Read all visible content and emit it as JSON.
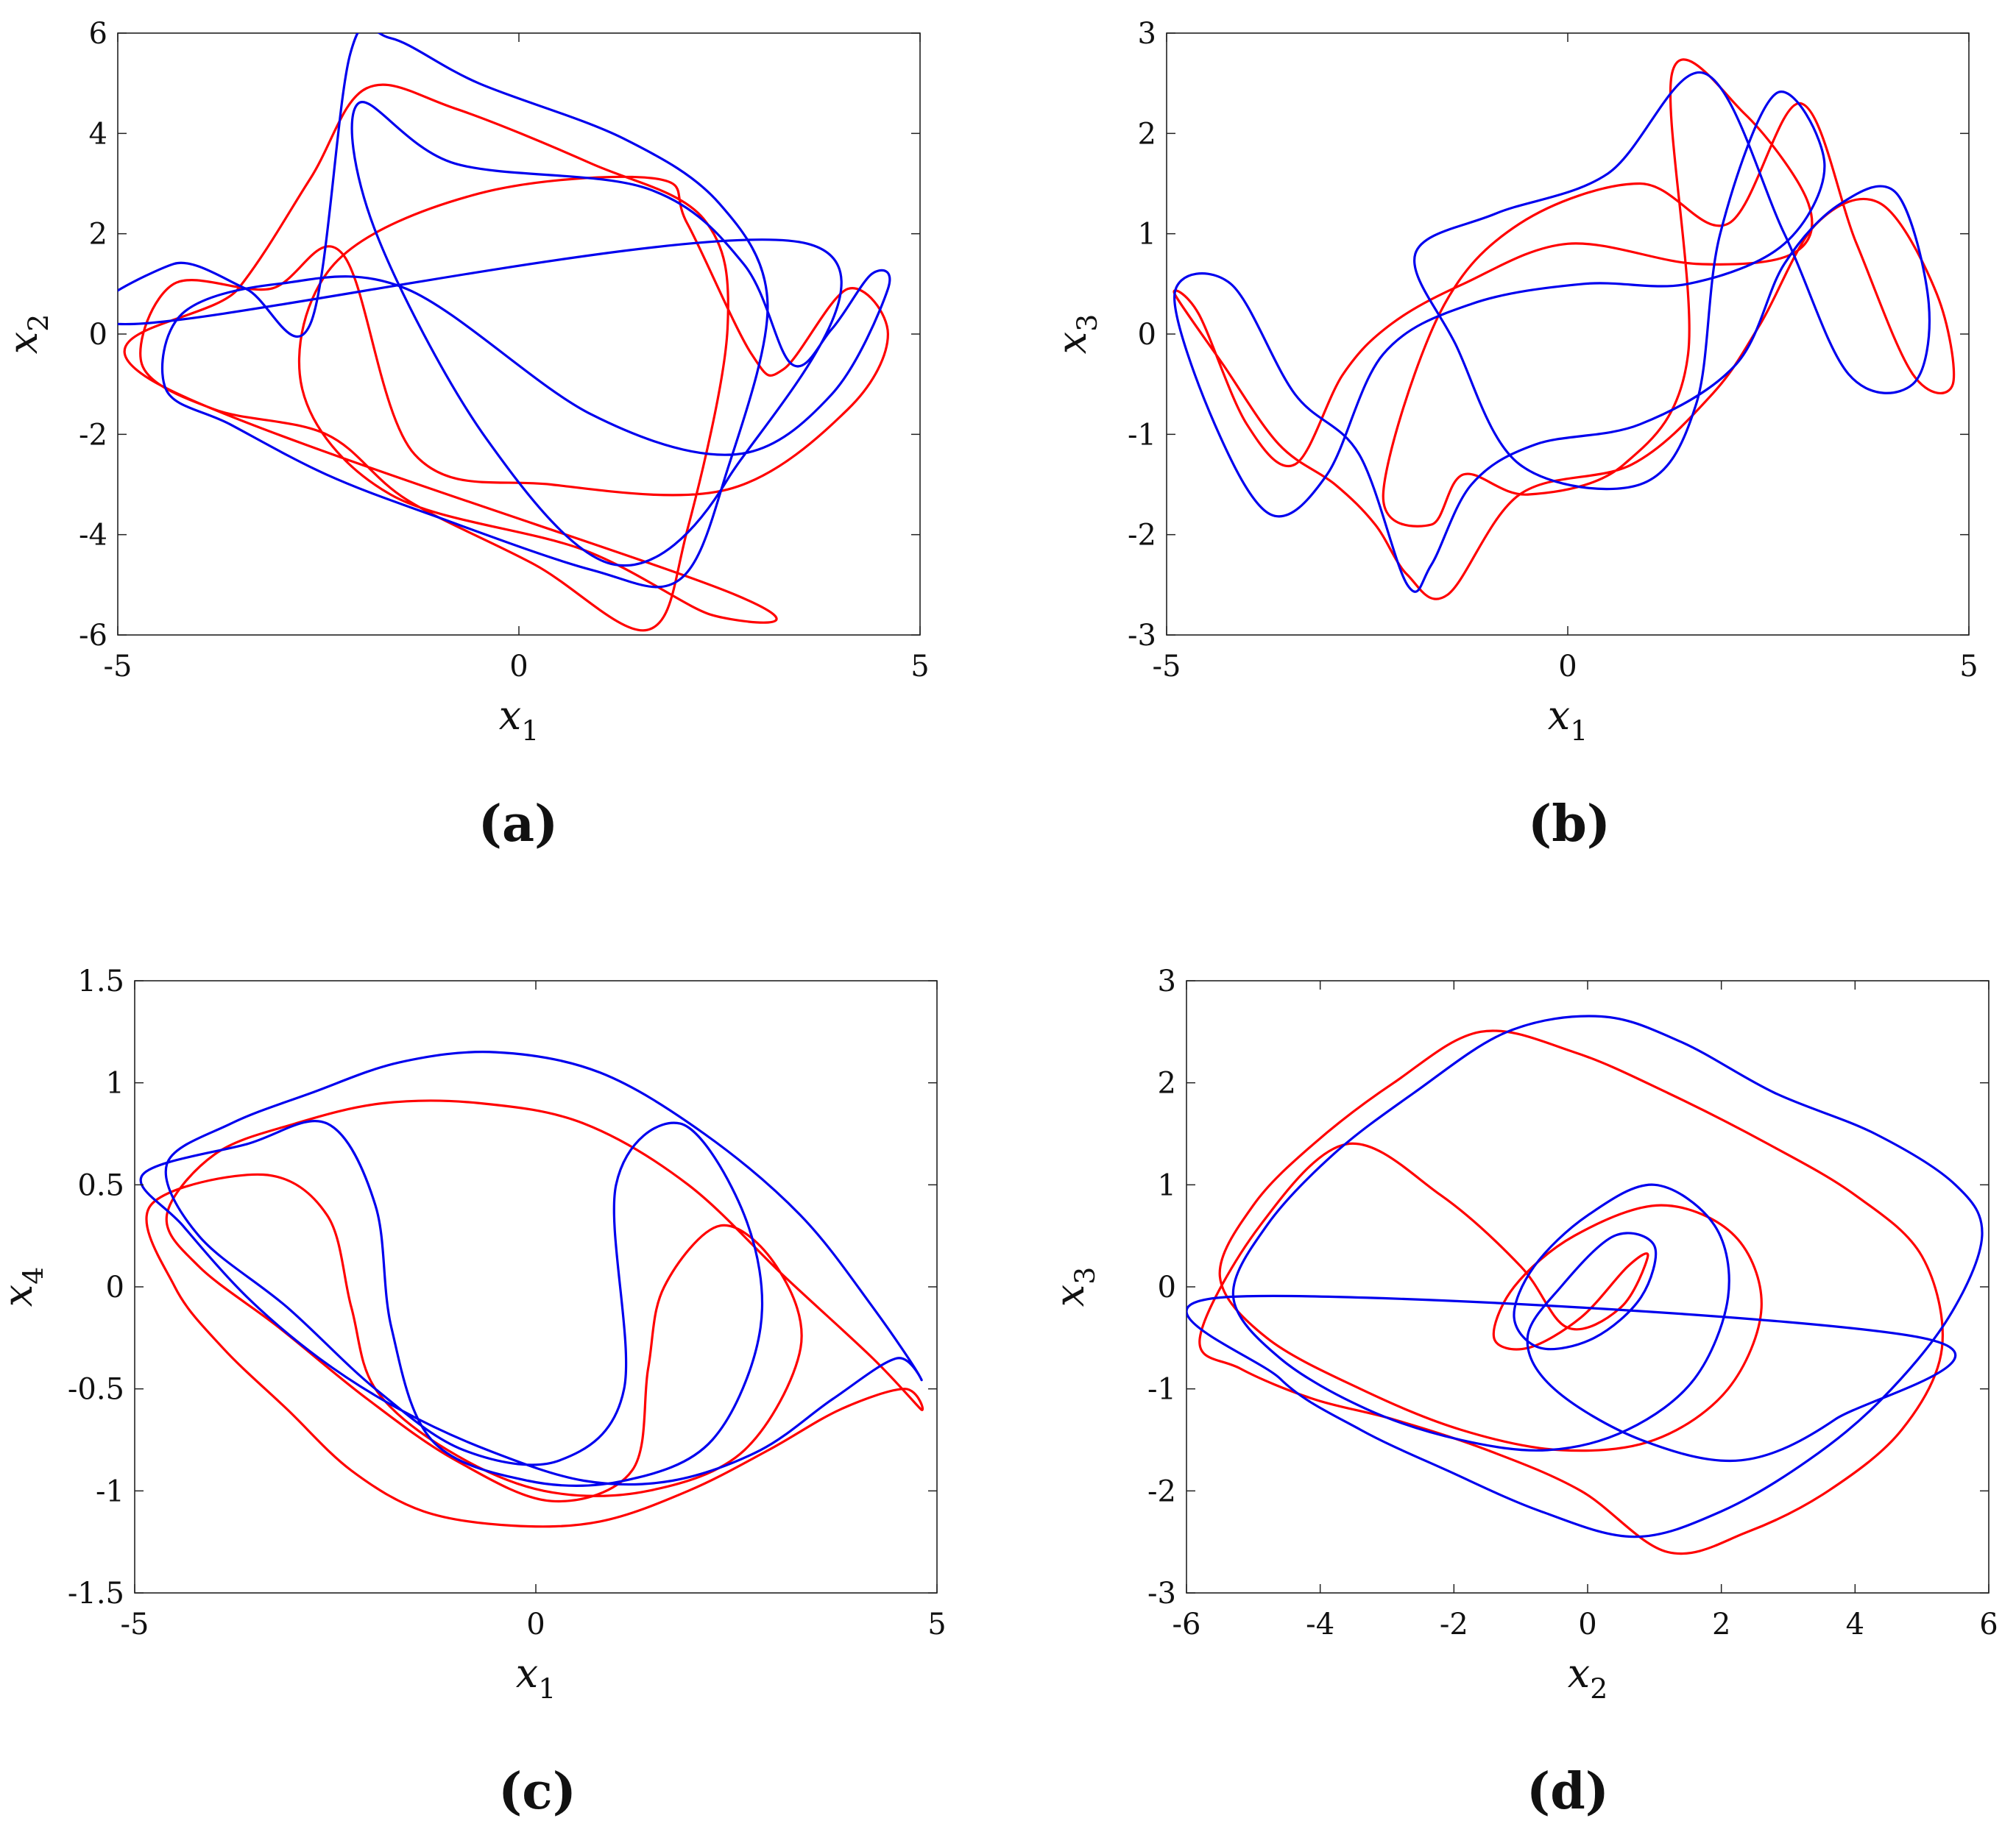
{
  "colors": {
    "series_red": "#ff0000",
    "series_blue": "#0000ee",
    "axes": "#222222"
  },
  "chart_data": [
    {
      "type": "line",
      "panel": "(a)",
      "xlabel": "x1",
      "ylabel": "x2",
      "xlim": [
        -5,
        5
      ],
      "ylim": [
        -6,
        6
      ],
      "xticks": [
        "-5",
        "0",
        "5"
      ],
      "yticks": [
        "-6",
        "-4",
        "-2",
        "0",
        "2",
        "4",
        "6"
      ],
      "grid": false,
      "series": [
        {
          "color": "red",
          "x": [
            -4.6,
            -3.5,
            -2.6,
            -1.9,
            -0.8,
            0.9,
            2.3,
            2.6,
            2.1,
            1.6,
            0.2,
            -1.4,
            -2.4,
            -3.8,
            -4.7,
            -4.3,
            -3.1,
            -2.2,
            -1.3,
            0.4,
            2.6,
            4.1,
            4.6,
            4.1,
            3.3,
            2.9,
            2.1,
            1.7,
            -0.5,
            -2.3,
            -2.7,
            -1.6,
            0.8,
            2.4,
            2.7
          ],
          "y": [
            -0.9,
            0.9,
            3.1,
            4.9,
            4.5,
            3.4,
            2.3,
            0.1,
            -3.9,
            -5.9,
            -4.6,
            -3.3,
            -2.0,
            -1.5,
            -0.6,
            1.0,
            0.9,
            1.6,
            -2.4,
            -3.0,
            -3.1,
            -1.5,
            0.0,
            0.9,
            -0.7,
            -0.4,
            2.2,
            3.1,
            2.8,
            1.4,
            -1.1,
            -3.2,
            -4.3,
            -5.6,
            -5.2
          ]
        },
        {
          "color": "blue",
          "x": [
            -4.8,
            -4.3,
            -3.4,
            -2.6,
            -2.1,
            -1.6,
            -0.5,
            1.3,
            2.5,
            3.1,
            2.6,
            2.0,
            0.9,
            -1.1,
            -2.4,
            -3.6,
            -4.4,
            -4.2,
            -3.0,
            -1.4,
            0.9,
            2.7,
            3.9,
            4.6,
            4.4,
            3.9,
            3.4,
            2.8,
            1.6,
            -0.8,
            -2.0,
            -1.8,
            -0.4,
            1.2,
            2.6,
            3.6
          ],
          "y": [
            0.2,
            1.4,
            0.9,
            0.2,
            5.6,
            5.9,
            5.0,
            3.9,
            2.6,
            0.6,
            -2.7,
            -4.9,
            -4.7,
            -3.6,
            -2.8,
            -1.8,
            -1.1,
            0.4,
            1.0,
            0.9,
            -1.6,
            -2.4,
            -1.2,
            0.9,
            1.2,
            0.1,
            -0.6,
            1.4,
            2.9,
            3.4,
            4.6,
            2.1,
            -2.1,
            -4.6,
            -2.9,
            1.8
          ]
        }
      ]
    },
    {
      "type": "line",
      "panel": "(b)",
      "xlabel": "x1",
      "ylabel": "x3",
      "xlim": [
        -5,
        5
      ],
      "ylim": [
        -3,
        3
      ],
      "xticks": [
        "-5",
        "0",
        "5"
      ],
      "yticks": [
        "-3",
        "-2",
        "-1",
        "0",
        "1",
        "2",
        "3"
      ],
      "grid": false,
      "series": [
        {
          "color": "red",
          "x": [
            -4.9,
            -4.3,
            -3.6,
            -2.9,
            -2.4,
            -2.0,
            -1.5,
            -0.6,
            0.8,
            1.8,
            2.4,
            3.1,
            3.9,
            4.6,
            4.8,
            4.3,
            3.6,
            2.9,
            2.0,
            0.9,
            -0.6,
            -1.6,
            -2.3,
            -1.7,
            -1.3,
            -0.5,
            0.7,
            1.5,
            1.3,
            2.2,
            3.0,
            2.8,
            1.6,
            0.0,
            -1.3,
            -2.2,
            -2.8,
            -3.4,
            -4.0,
            -4.6
          ],
          "y": [
            0.4,
            -0.3,
            -1.1,
            -1.5,
            -1.9,
            -2.4,
            -2.6,
            -1.6,
            -1.3,
            -0.6,
            0.1,
            1.1,
            1.3,
            0.4,
            -0.5,
            -0.4,
            0.9,
            2.3,
            1.1,
            1.5,
            1.1,
            0.2,
            -1.6,
            -1.9,
            -1.4,
            -1.6,
            -1.3,
            -0.2,
            2.6,
            2.2,
            1.3,
            0.8,
            0.7,
            0.9,
            0.5,
            0.1,
            -0.4,
            -1.3,
            -0.9,
            0.2
          ]
        },
        {
          "color": "blue",
          "x": [
            -4.9,
            -4.2,
            -3.4,
            -2.6,
            -2.0,
            -1.7,
            -1.2,
            -0.4,
            0.9,
            2.1,
            2.7,
            3.4,
            4.1,
            4.5,
            4.3,
            3.5,
            2.7,
            1.7,
            0.5,
            -0.9,
            -1.9,
            -1.4,
            -0.6,
            0.9,
            1.6,
            1.9,
            2.6,
            3.2,
            2.7,
            1.5,
            0.2,
            -1.2,
            -2.3,
            -3.0,
            -3.7,
            -4.4
          ],
          "y": [
            0.4,
            0.5,
            -0.6,
            -1.2,
            -2.5,
            -2.3,
            -1.5,
            -1.1,
            -0.9,
            -0.3,
            0.7,
            1.3,
            1.4,
            0.3,
            -0.5,
            -0.4,
            1.0,
            2.6,
            1.6,
            1.2,
            0.8,
            -0.1,
            -1.3,
            -1.5,
            -0.7,
            1.0,
            2.4,
            1.7,
            0.9,
            0.5,
            0.5,
            0.3,
            -0.2,
            -1.4,
            -1.8,
            -0.9
          ]
        }
      ]
    },
    {
      "type": "line",
      "panel": "(c)",
      "xlabel": "x1",
      "ylabel": "x4",
      "xlim": [
        -5,
        5
      ],
      "ylim": [
        -1.5,
        1.5
      ],
      "xticks": [
        "-5",
        "0",
        "5"
      ],
      "yticks": [
        "-1.5",
        "-1",
        "-0.5",
        "0",
        "0.5",
        "1",
        "1.5"
      ],
      "grid": false,
      "series": [
        {
          "color": "red",
          "x": [
            -4.8,
            -4.5,
            -3.9,
            -3.1,
            -2.3,
            -1.4,
            -0.3,
            0.8,
            1.9,
            2.9,
            3.8,
            4.6,
            4.8,
            4.2,
            3.1,
            1.9,
            0.6,
            -0.7,
            -1.9,
            -3.0,
            -4.0,
            -4.6,
            -4.2,
            -3.2,
            -2.1,
            -1.0,
            0.2,
            1.2,
            1.4,
            1.6,
            2.3,
            3.0,
            3.3,
            2.6,
            1.4,
            0.1,
            -1.1,
            -2.0,
            -2.3,
            -2.6,
            -3.4
          ],
          "y": [
            0.4,
            0.0,
            -0.3,
            -0.6,
            -0.9,
            -1.1,
            -1.17,
            -1.15,
            -1.0,
            -0.8,
            -0.6,
            -0.5,
            -0.6,
            -0.35,
            0.05,
            0.5,
            0.8,
            0.9,
            0.9,
            0.8,
            0.65,
            0.35,
            0.1,
            -0.2,
            -0.55,
            -0.85,
            -1.05,
            -0.9,
            -0.4,
            0.0,
            0.3,
            0.1,
            -0.3,
            -0.8,
            -1.0,
            -1.0,
            -0.8,
            -0.5,
            -0.1,
            0.35,
            0.55
          ]
        },
        {
          "color": "blue",
          "x": [
            -4.9,
            -4.4,
            -3.6,
            -2.7,
            -1.7,
            -0.6,
            0.6,
            1.7,
            2.8,
            3.7,
            4.5,
            4.8,
            4.2,
            3.3,
            2.1,
            0.8,
            -0.5,
            -1.7,
            -2.8,
            -3.8,
            -4.6,
            -4.2,
            -3.1,
            -2.0,
            -0.9,
            0.3,
            1.1,
            1.0,
            1.8,
            2.6,
            2.8,
            2.2,
            1.1,
            -0.1,
            -1.3,
            -1.8,
            -2.0,
            -2.6,
            -3.6
          ],
          "y": [
            0.55,
            0.3,
            -0.05,
            -0.35,
            -0.6,
            -0.8,
            -0.95,
            -0.95,
            -0.8,
            -0.55,
            -0.35,
            -0.45,
            -0.1,
            0.35,
            0.75,
            1.05,
            1.15,
            1.1,
            0.95,
            0.8,
            0.6,
            0.25,
            -0.1,
            -0.5,
            -0.8,
            -0.85,
            -0.5,
            0.5,
            0.8,
            0.35,
            -0.2,
            -0.75,
            -0.95,
            -0.95,
            -0.75,
            -0.2,
            0.4,
            0.8,
            0.7
          ]
        }
      ]
    },
    {
      "type": "line",
      "panel": "(d)",
      "xlabel": "x2",
      "ylabel": "x3",
      "xlim": [
        -6,
        6
      ],
      "ylim": [
        -3,
        3
      ],
      "xticks": [
        "-6",
        "-4",
        "-2",
        "0",
        "2",
        "4",
        "6"
      ],
      "yticks": [
        "-3",
        "-2",
        "-1",
        "0",
        "1",
        "2",
        "3"
      ],
      "grid": false,
      "series": [
        {
          "color": "red",
          "x": [
            -5.8,
            -5.2,
            -4.1,
            -2.9,
            -1.5,
            -0.1,
            1.2,
            2.4,
            3.6,
            4.7,
            5.3,
            5.0,
            4.0,
            2.7,
            1.2,
            -0.2,
            -1.6,
            -2.9,
            -4.1,
            -5.0,
            -5.5,
            -4.8,
            -3.4,
            -1.9,
            -0.4,
            1.0,
            2.1,
            2.6,
            2.2,
            1.1,
            -0.2,
            -1.1,
            -1.4,
            -0.9,
            -0.1,
            0.6,
            0.9,
            0.5,
            -0.3,
            -1.0,
            -2.2,
            -3.6,
            -4.9
          ],
          "y": [
            -0.5,
            -0.8,
            -1.1,
            -1.3,
            -1.6,
            -2.0,
            -2.6,
            -2.4,
            -2.0,
            -1.4,
            -0.6,
            0.3,
            0.9,
            1.4,
            1.9,
            2.3,
            2.5,
            2.0,
            1.4,
            0.8,
            0.1,
            -0.5,
            -1.0,
            -1.4,
            -1.6,
            -1.5,
            -1.0,
            -0.2,
            0.5,
            0.8,
            0.5,
            0.0,
            -0.5,
            -0.6,
            -0.3,
            0.2,
            0.3,
            -0.2,
            -0.4,
            0.2,
            0.9,
            1.4,
            0.6
          ]
        },
        {
          "color": "blue",
          "x": [
            -5.4,
            -4.6,
            -3.4,
            -2.1,
            -0.7,
            0.7,
            2.0,
            3.3,
            4.4,
            5.4,
            5.9,
            5.5,
            4.3,
            2.8,
            1.4,
            0.2,
            -1.2,
            -2.6,
            -3.8,
            -4.8,
            -5.3,
            -4.6,
            -3.3,
            -1.9,
            -0.6,
            0.6,
            1.6,
            2.1,
            1.9,
            1.0,
            0.0,
            -0.8,
            -1.1,
            -0.7,
            0.1,
            0.8,
            1.0,
            0.4,
            -0.4,
            -0.9,
            -0.5,
            0.8,
            2.3,
            3.7,
            5.0
          ],
          "y": [
            -0.1,
            -0.9,
            -1.4,
            -1.8,
            -2.2,
            -2.45,
            -2.2,
            -1.7,
            -1.1,
            -0.3,
            0.5,
            1.0,
            1.5,
            1.9,
            2.4,
            2.65,
            2.5,
            1.9,
            1.3,
            0.6,
            -0.1,
            -0.7,
            -1.2,
            -1.5,
            -1.6,
            -1.4,
            -0.9,
            -0.1,
            0.6,
            1.0,
            0.7,
            0.2,
            -0.3,
            -0.6,
            -0.5,
            -0.1,
            0.4,
            0.5,
            0.0,
            -0.5,
            -1.0,
            -1.5,
            -1.7,
            -1.3,
            -0.5
          ]
        }
      ]
    }
  ]
}
